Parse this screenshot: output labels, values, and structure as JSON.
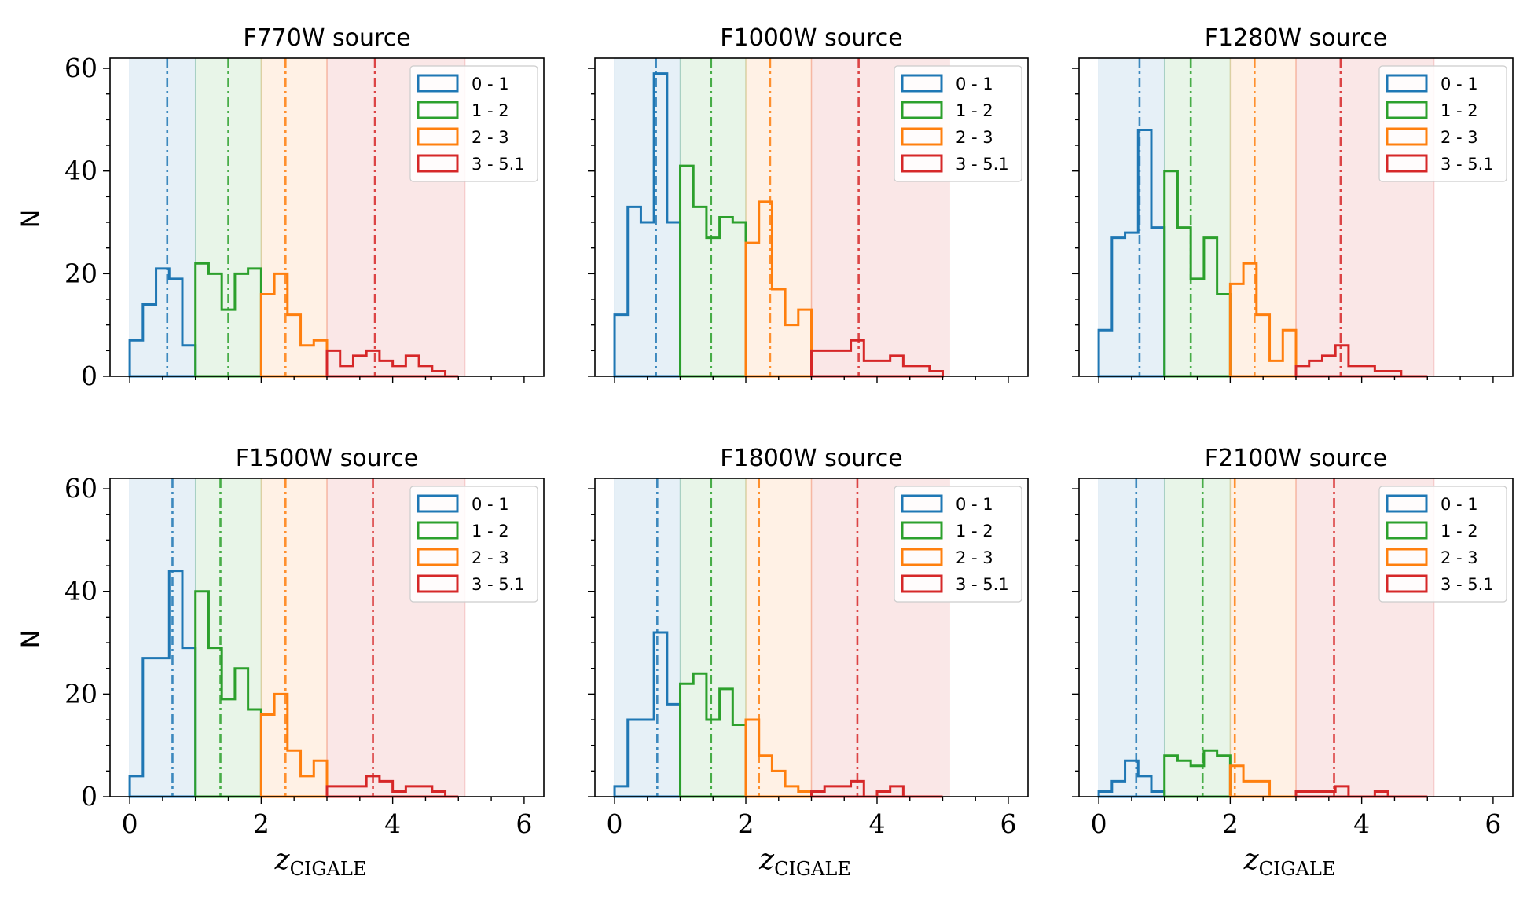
{
  "chart_data": [
    {
      "type": "histogram",
      "title": "F770W source",
      "xlabel": "z",
      "xlabel_sub": "CIGALE",
      "ylabel": "N",
      "xlim": [
        -0.3,
        6.3
      ],
      "ylim": [
        0,
        62
      ],
      "xticks": [
        0,
        2,
        4,
        6
      ],
      "yticks": [
        0,
        20,
        40,
        60
      ],
      "legend": [
        "0 - 1",
        "1 - 2",
        "2 - 3",
        "3 - 5.1"
      ],
      "bands": [
        [
          0,
          1
        ],
        [
          1,
          2
        ],
        [
          2,
          3
        ],
        [
          3,
          5.1
        ]
      ],
      "medians": [
        0.57,
        1.5,
        2.37,
        3.73
      ],
      "series": [
        {
          "name": "0 - 1",
          "edges": [
            0,
            0.2,
            0.4,
            0.6,
            0.8,
            1.0
          ],
          "counts": [
            7,
            14,
            21,
            19,
            6
          ]
        },
        {
          "name": "1 - 2",
          "edges": [
            1.0,
            1.2,
            1.4,
            1.6,
            1.8,
            2.0
          ],
          "counts": [
            22,
            20,
            13,
            20,
            21
          ]
        },
        {
          "name": "2 - 3",
          "edges": [
            2.0,
            2.2,
            2.4,
            2.6,
            2.8,
            3.0
          ],
          "counts": [
            16,
            20,
            12,
            6,
            7
          ]
        },
        {
          "name": "3 - 5.1",
          "edges": [
            3.0,
            3.2,
            3.4,
            3.6,
            3.8,
            4.0,
            4.2,
            4.4,
            4.6,
            4.8,
            5.0
          ],
          "counts": [
            5,
            2,
            4,
            5,
            3,
            2,
            4,
            2,
            1,
            0
          ]
        }
      ]
    },
    {
      "type": "histogram",
      "title": "F1000W source",
      "xlabel": "z",
      "xlabel_sub": "CIGALE",
      "ylabel": "",
      "xlim": [
        -0.3,
        6.3
      ],
      "ylim": [
        0,
        62
      ],
      "xticks": [
        0,
        2,
        4,
        6
      ],
      "yticks": [
        0,
        20,
        40,
        60
      ],
      "legend": [
        "0 - 1",
        "1 - 2",
        "2 - 3",
        "3 - 5.1"
      ],
      "bands": [
        [
          0,
          1
        ],
        [
          1,
          2
        ],
        [
          2,
          3
        ],
        [
          3,
          5.1
        ]
      ],
      "medians": [
        0.63,
        1.47,
        2.37,
        3.72
      ],
      "series": [
        {
          "name": "0 - 1",
          "edges": [
            0,
            0.2,
            0.4,
            0.6,
            0.8,
            1.0
          ],
          "counts": [
            12,
            33,
            30,
            59,
            30
          ]
        },
        {
          "name": "1 - 2",
          "edges": [
            1.0,
            1.2,
            1.4,
            1.6,
            1.8,
            2.0
          ],
          "counts": [
            41,
            33,
            27,
            31,
            30
          ]
        },
        {
          "name": "2 - 3",
          "edges": [
            2.0,
            2.2,
            2.4,
            2.6,
            2.8,
            3.0
          ],
          "counts": [
            26,
            34,
            17,
            10,
            13
          ]
        },
        {
          "name": "3 - 5.1",
          "edges": [
            3.0,
            3.2,
            3.4,
            3.6,
            3.8,
            4.0,
            4.2,
            4.4,
            4.6,
            4.8,
            5.0
          ],
          "counts": [
            5,
            5,
            5,
            7,
            3,
            3,
            4,
            2,
            2,
            1
          ]
        }
      ]
    },
    {
      "type": "histogram",
      "title": "F1280W source",
      "xlabel": "z",
      "xlabel_sub": "CIGALE",
      "ylabel": "",
      "xlim": [
        -0.3,
        6.3
      ],
      "ylim": [
        0,
        62
      ],
      "xticks": [
        0,
        2,
        4,
        6
      ],
      "yticks": [
        0,
        20,
        40,
        60
      ],
      "legend": [
        "0 - 1",
        "1 - 2",
        "2 - 3",
        "3 - 5.1"
      ],
      "bands": [
        [
          0,
          1
        ],
        [
          1,
          2
        ],
        [
          2,
          3
        ],
        [
          3,
          5.1
        ]
      ],
      "medians": [
        0.62,
        1.4,
        2.37,
        3.68
      ],
      "series": [
        {
          "name": "0 - 1",
          "edges": [
            0,
            0.2,
            0.4,
            0.6,
            0.8,
            1.0
          ],
          "counts": [
            9,
            27,
            28,
            48,
            29
          ]
        },
        {
          "name": "1 - 2",
          "edges": [
            1.0,
            1.2,
            1.4,
            1.6,
            1.8,
            2.0
          ],
          "counts": [
            40,
            29,
            19,
            27,
            16
          ]
        },
        {
          "name": "2 - 3",
          "edges": [
            2.0,
            2.2,
            2.4,
            2.6,
            2.8,
            3.0
          ],
          "counts": [
            18,
            22,
            12,
            3,
            9
          ]
        },
        {
          "name": "3 - 5.1",
          "edges": [
            3.0,
            3.2,
            3.4,
            3.6,
            3.8,
            4.0,
            4.2,
            4.4,
            4.6,
            4.8,
            5.0
          ],
          "counts": [
            2,
            3,
            4,
            6,
            2,
            2,
            1,
            1,
            0,
            0
          ]
        }
      ]
    },
    {
      "type": "histogram",
      "title": "F1500W source",
      "xlabel": "z",
      "xlabel_sub": "CIGALE",
      "ylabel": "N",
      "xlim": [
        -0.3,
        6.3
      ],
      "ylim": [
        0,
        62
      ],
      "xticks": [
        0,
        2,
        4,
        6
      ],
      "yticks": [
        0,
        20,
        40,
        60
      ],
      "legend": [
        "0 - 1",
        "1 - 2",
        "2 - 3",
        "3 - 5.1"
      ],
      "bands": [
        [
          0,
          1
        ],
        [
          1,
          2
        ],
        [
          2,
          3
        ],
        [
          3,
          5.1
        ]
      ],
      "medians": [
        0.65,
        1.38,
        2.37,
        3.7
      ],
      "series": [
        {
          "name": "0 - 1",
          "edges": [
            0,
            0.2,
            0.4,
            0.6,
            0.8,
            1.0
          ],
          "counts": [
            4,
            27,
            27,
            44,
            29
          ]
        },
        {
          "name": "1 - 2",
          "edges": [
            1.0,
            1.2,
            1.4,
            1.6,
            1.8,
            2.0
          ],
          "counts": [
            40,
            29,
            19,
            25,
            17
          ]
        },
        {
          "name": "2 - 3",
          "edges": [
            2.0,
            2.2,
            2.4,
            2.6,
            2.8,
            3.0
          ],
          "counts": [
            16,
            20,
            9,
            4,
            7
          ]
        },
        {
          "name": "3 - 5.1",
          "edges": [
            3.0,
            3.2,
            3.4,
            3.6,
            3.8,
            4.0,
            4.2,
            4.4,
            4.6,
            4.8,
            5.0
          ],
          "counts": [
            2,
            2,
            2,
            4,
            3,
            1,
            2,
            2,
            1,
            0
          ]
        }
      ]
    },
    {
      "type": "histogram",
      "title": "F1800W source",
      "xlabel": "z",
      "xlabel_sub": "CIGALE",
      "ylabel": "",
      "xlim": [
        -0.3,
        6.3
      ],
      "ylim": [
        0,
        62
      ],
      "xticks": [
        0,
        2,
        4,
        6
      ],
      "yticks": [
        0,
        20,
        40,
        60
      ],
      "legend": [
        "0 - 1",
        "1 - 2",
        "2 - 3",
        "3 - 5.1"
      ],
      "bands": [
        [
          0,
          1
        ],
        [
          1,
          2
        ],
        [
          2,
          3
        ],
        [
          3,
          5.1
        ]
      ],
      "medians": [
        0.65,
        1.47,
        2.2,
        3.7
      ],
      "series": [
        {
          "name": "0 - 1",
          "edges": [
            0,
            0.2,
            0.4,
            0.6,
            0.8,
            1.0
          ],
          "counts": [
            2,
            15,
            15,
            32,
            18
          ]
        },
        {
          "name": "1 - 2",
          "edges": [
            1.0,
            1.2,
            1.4,
            1.6,
            1.8,
            2.0
          ],
          "counts": [
            22,
            24,
            15,
            21,
            14
          ]
        },
        {
          "name": "2 - 3",
          "edges": [
            2.0,
            2.2,
            2.4,
            2.6,
            2.8,
            3.0
          ],
          "counts": [
            15,
            8,
            5,
            2,
            1
          ]
        },
        {
          "name": "3 - 5.1",
          "edges": [
            3.0,
            3.2,
            3.4,
            3.6,
            3.8,
            4.0,
            4.2,
            4.4,
            4.6,
            4.8,
            5.0
          ],
          "counts": [
            1,
            2,
            2,
            3,
            0,
            1,
            2,
            0,
            0,
            0
          ]
        }
      ]
    },
    {
      "type": "histogram",
      "title": "F2100W source",
      "xlabel": "z",
      "xlabel_sub": "CIGALE",
      "ylabel": "",
      "xlim": [
        -0.3,
        6.3
      ],
      "ylim": [
        0,
        62
      ],
      "xticks": [
        0,
        2,
        4,
        6
      ],
      "yticks": [
        0,
        20,
        40,
        60
      ],
      "legend": [
        "0 - 1",
        "1 - 2",
        "2 - 3",
        "3 - 5.1"
      ],
      "bands": [
        [
          0,
          1
        ],
        [
          1,
          2
        ],
        [
          2,
          3
        ],
        [
          3,
          5.1
        ]
      ],
      "medians": [
        0.57,
        1.58,
        2.07,
        3.58
      ],
      "series": [
        {
          "name": "0 - 1",
          "edges": [
            0,
            0.2,
            0.4,
            0.6,
            0.8,
            1.0
          ],
          "counts": [
            1,
            3,
            7,
            4,
            1
          ]
        },
        {
          "name": "1 - 2",
          "edges": [
            1.0,
            1.2,
            1.4,
            1.6,
            1.8,
            2.0
          ],
          "counts": [
            8,
            7,
            6,
            9,
            8
          ]
        },
        {
          "name": "2 - 3",
          "edges": [
            2.0,
            2.2,
            2.4,
            2.6,
            2.8,
            3.0
          ],
          "counts": [
            6,
            3,
            3,
            0,
            0
          ]
        },
        {
          "name": "3 - 5.1",
          "edges": [
            3.0,
            3.2,
            3.4,
            3.6,
            3.8,
            4.0,
            4.2,
            4.4,
            4.6,
            4.8,
            5.0
          ],
          "counts": [
            1,
            1,
            1,
            2,
            0,
            0,
            1,
            0,
            0,
            0
          ]
        }
      ]
    }
  ],
  "colors": {
    "band_0_1": "#1f77b4",
    "band_1_2": "#2ca02c",
    "band_2_3": "#ff7f0e",
    "band_3_5": "#d62728"
  }
}
